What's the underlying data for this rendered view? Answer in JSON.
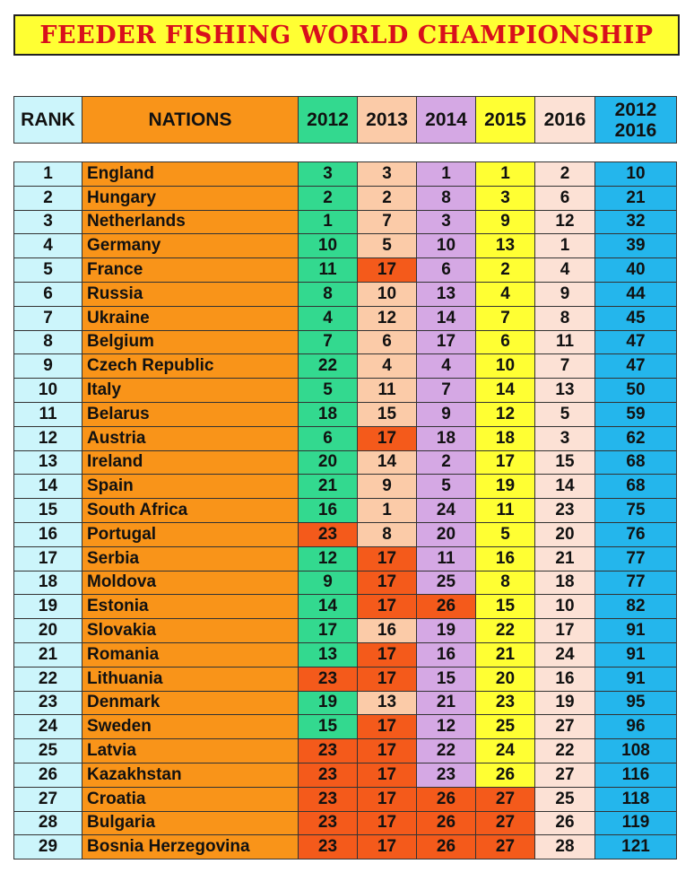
{
  "title": "FEEDER FISHING WORLD CHAMPIONSHIP",
  "headers": {
    "rank": "RANK",
    "nation": "NATIONS",
    "y2012": "2012",
    "y2013": "2013",
    "y2014": "2014",
    "y2015": "2015",
    "y2016": "2016",
    "total_line1": "2012",
    "total_line2": "2016"
  },
  "colors": {
    "title_bg": "#ffff33",
    "title_text": "#d8101c",
    "rank": "#ccf5fb",
    "nation": "#f99419",
    "y2012": "#33d98f",
    "y2013": "#fbcba8",
    "y2014": "#d5a8e4",
    "y2015": "#ffff33",
    "y2016": "#fce1d5",
    "total": "#24b6ec",
    "worst_place": "#f45a1b"
  },
  "rows": [
    {
      "rank": "1",
      "nation": "England",
      "y2012": "3",
      "y2013": "3",
      "y2014": "1",
      "y2015": "1",
      "y2016": "2",
      "total": "10"
    },
    {
      "rank": "2",
      "nation": "Hungary",
      "y2012": "2",
      "y2013": "2",
      "y2014": "8",
      "y2015": "3",
      "y2016": "6",
      "total": "21"
    },
    {
      "rank": "3",
      "nation": "Netherlands",
      "y2012": "1",
      "y2013": "7",
      "y2014": "3",
      "y2015": "9",
      "y2016": "12",
      "total": "32"
    },
    {
      "rank": "4",
      "nation": "Germany",
      "y2012": "10",
      "y2013": "5",
      "y2014": "10",
      "y2015": "13",
      "y2016": "1",
      "total": "39"
    },
    {
      "rank": "5",
      "nation": "France",
      "y2012": "11",
      "y2013": "17",
      "y2014": "6",
      "y2015": "2",
      "y2016": "4",
      "total": "40"
    },
    {
      "rank": "6",
      "nation": "Russia",
      "y2012": "8",
      "y2013": "10",
      "y2014": "13",
      "y2015": "4",
      "y2016": "9",
      "total": "44"
    },
    {
      "rank": "7",
      "nation": "Ukraine",
      "y2012": "4",
      "y2013": "12",
      "y2014": "14",
      "y2015": "7",
      "y2016": "8",
      "total": "45"
    },
    {
      "rank": "8",
      "nation": "Belgium",
      "y2012": "7",
      "y2013": "6",
      "y2014": "17",
      "y2015": "6",
      "y2016": "11",
      "total": "47"
    },
    {
      "rank": "9",
      "nation": "Czech Republic",
      "y2012": "22",
      "y2013": "4",
      "y2014": "4",
      "y2015": "10",
      "y2016": "7",
      "total": "47"
    },
    {
      "rank": "10",
      "nation": "Italy",
      "y2012": "5",
      "y2013": "11",
      "y2014": "7",
      "y2015": "14",
      "y2016": "13",
      "total": "50"
    },
    {
      "rank": "11",
      "nation": "Belarus",
      "y2012": "18",
      "y2013": "15",
      "y2014": "9",
      "y2015": "12",
      "y2016": "5",
      "total": "59"
    },
    {
      "rank": "12",
      "nation": "Austria",
      "y2012": "6",
      "y2013": "17",
      "y2014": "18",
      "y2015": "18",
      "y2016": "3",
      "total": "62"
    },
    {
      "rank": "13",
      "nation": "Ireland",
      "y2012": "20",
      "y2013": "14",
      "y2014": "2",
      "y2015": "17",
      "y2016": "15",
      "total": "68"
    },
    {
      "rank": "14",
      "nation": "Spain",
      "y2012": "21",
      "y2013": "9",
      "y2014": "5",
      "y2015": "19",
      "y2016": "14",
      "total": "68"
    },
    {
      "rank": "15",
      "nation": "South Africa",
      "y2012": "16",
      "y2013": "1",
      "y2014": "24",
      "y2015": "11",
      "y2016": "23",
      "total": "75"
    },
    {
      "rank": "16",
      "nation": "Portugal",
      "y2012": "23",
      "y2013": "8",
      "y2014": "20",
      "y2015": "5",
      "y2016": "20",
      "total": "76"
    },
    {
      "rank": "17",
      "nation": "Serbia",
      "y2012": "12",
      "y2013": "17",
      "y2014": "11",
      "y2015": "16",
      "y2016": "21",
      "total": "77"
    },
    {
      "rank": "18",
      "nation": "Moldova",
      "y2012": "9",
      "y2013": "17",
      "y2014": "25",
      "y2015": "8",
      "y2016": "18",
      "total": "77"
    },
    {
      "rank": "19",
      "nation": "Estonia",
      "y2012": "14",
      "y2013": "17",
      "y2014": "26",
      "y2015": "15",
      "y2016": "10",
      "total": "82"
    },
    {
      "rank": "20",
      "nation": "Slovakia",
      "y2012": "17",
      "y2013": "16",
      "y2014": "19",
      "y2015": "22",
      "y2016": "17",
      "total": "91"
    },
    {
      "rank": "21",
      "nation": "Romania",
      "y2012": "13",
      "y2013": "17",
      "y2014": "16",
      "y2015": "21",
      "y2016": "24",
      "total": "91"
    },
    {
      "rank": "22",
      "nation": "Lithuania",
      "y2012": "23",
      "y2013": "17",
      "y2014": "15",
      "y2015": "20",
      "y2016": "16",
      "total": "91"
    },
    {
      "rank": "23",
      "nation": "Denmark",
      "y2012": "19",
      "y2013": "13",
      "y2014": "21",
      "y2015": "23",
      "y2016": "19",
      "total": "95"
    },
    {
      "rank": "24",
      "nation": "Sweden",
      "y2012": "15",
      "y2013": "17",
      "y2014": "12",
      "y2015": "25",
      "y2016": "27",
      "total": "96"
    },
    {
      "rank": "25",
      "nation": "Latvia",
      "y2012": "23",
      "y2013": "17",
      "y2014": "22",
      "y2015": "24",
      "y2016": "22",
      "total": "108"
    },
    {
      "rank": "26",
      "nation": "Kazakhstan",
      "y2012": "23",
      "y2013": "17",
      "y2014": "23",
      "y2015": "26",
      "y2016": "27",
      "total": "116"
    },
    {
      "rank": "27",
      "nation": "Croatia",
      "y2012": "23",
      "y2013": "17",
      "y2014": "26",
      "y2015": "27",
      "y2016": "25",
      "total": "118"
    },
    {
      "rank": "28",
      "nation": "Bulgaria",
      "y2012": "23",
      "y2013": "17",
      "y2014": "26",
      "y2015": "27",
      "y2016": "26",
      "total": "119"
    },
    {
      "rank": "29",
      "nation": "Bosnia Herzegovina",
      "y2012": "23",
      "y2013": "17",
      "y2014": "26",
      "y2015": "27",
      "y2016": "28",
      "total": "121"
    }
  ],
  "highlighted_cells": [
    {
      "row": 5,
      "col": "y2013"
    },
    {
      "row": 12,
      "col": "y2013"
    },
    {
      "row": 16,
      "col": "y2012"
    },
    {
      "row": 17,
      "col": "y2013"
    },
    {
      "row": 18,
      "col": "y2013"
    },
    {
      "row": 19,
      "col": "y2013"
    },
    {
      "row": 19,
      "col": "y2014"
    },
    {
      "row": 21,
      "col": "y2013"
    },
    {
      "row": 22,
      "col": "y2012"
    },
    {
      "row": 22,
      "col": "y2013"
    },
    {
      "row": 24,
      "col": "y2013"
    },
    {
      "row": 25,
      "col": "y2012"
    },
    {
      "row": 25,
      "col": "y2013"
    },
    {
      "row": 26,
      "col": "y2012"
    },
    {
      "row": 26,
      "col": "y2013"
    },
    {
      "row": 27,
      "col": "y2012"
    },
    {
      "row": 27,
      "col": "y2013"
    },
    {
      "row": 27,
      "col": "y2014"
    },
    {
      "row": 27,
      "col": "y2015"
    },
    {
      "row": 28,
      "col": "y2012"
    },
    {
      "row": 28,
      "col": "y2013"
    },
    {
      "row": 28,
      "col": "y2014"
    },
    {
      "row": 28,
      "col": "y2015"
    },
    {
      "row": 29,
      "col": "y2012"
    },
    {
      "row": 29,
      "col": "y2013"
    },
    {
      "row": 29,
      "col": "y2014"
    },
    {
      "row": 29,
      "col": "y2015"
    }
  ]
}
